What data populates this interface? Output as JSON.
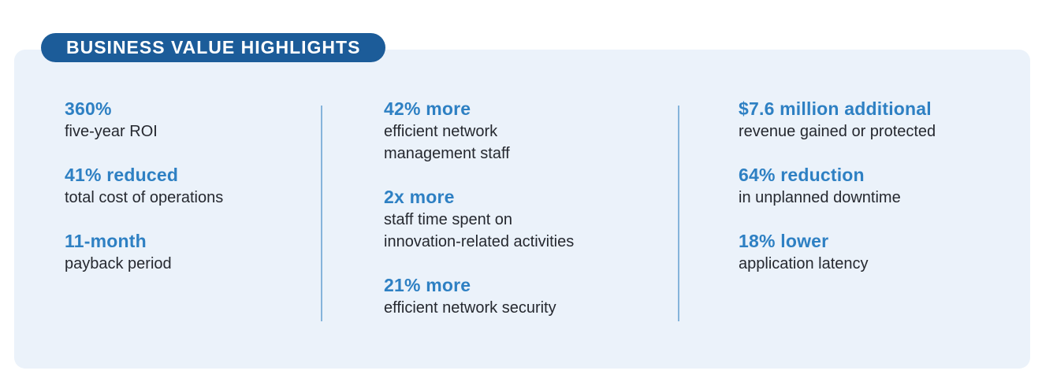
{
  "badge": {
    "label": "BUSINESS VALUE HIGHLIGHTS"
  },
  "colors": {
    "badge_bg": "#1C5C99",
    "panel_bg": "#EBF2FA",
    "stat_blue": "#2E80C3",
    "divider": "#85B4DB",
    "text_dark": "#25282F"
  },
  "columns": [
    {
      "items": [
        {
          "stat": "360%",
          "desc": "five-year ROI"
        },
        {
          "stat": "41% reduced",
          "desc": "total cost of operations"
        },
        {
          "stat": "11-month",
          "desc": "payback period"
        }
      ]
    },
    {
      "items": [
        {
          "stat": "42% more",
          "desc": "efficient network\nmanagement staff"
        },
        {
          "stat": "2x more",
          "desc": "staff time spent on\ninnovation-related activities"
        },
        {
          "stat": "21% more",
          "desc": "efficient network security"
        }
      ]
    },
    {
      "items": [
        {
          "stat": "$7.6 million additional",
          "desc": "revenue gained or protected"
        },
        {
          "stat": "64% reduction",
          "desc": "in unplanned downtime"
        },
        {
          "stat": "18% lower",
          "desc": "application latency"
        }
      ]
    }
  ]
}
